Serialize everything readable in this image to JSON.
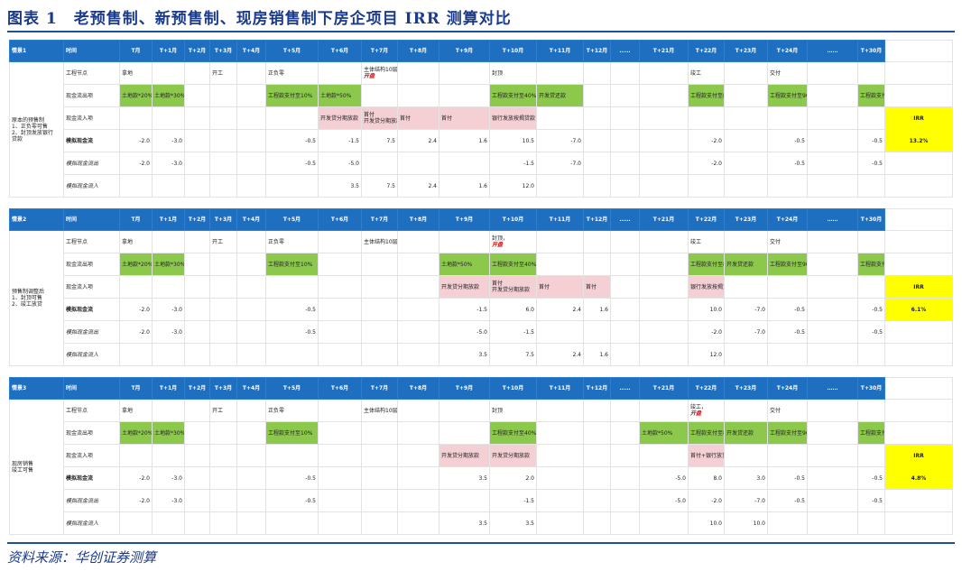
{
  "title": "图表 1　老预售制、新预售制、现房销售制下房企项目 IRR 测算对比",
  "source": "资料来源：华创证券测算",
  "columns": [
    "时间",
    "T月",
    "T+1月",
    "T+2月",
    "T+3月",
    "T+4月",
    "T+5月",
    "T+6月",
    "T+7月",
    "T+8月",
    "T+9月",
    "T+10月",
    "T+11月",
    "T+12月",
    "……",
    "T+21月",
    "T+22月",
    "T+23月",
    "T+24月",
    "……",
    "T+30月"
  ],
  "scenarios": [
    {
      "name": "情景1",
      "desc": [
        "原本的预售制",
        "1、正负零可售",
        "2、封顶发放银行",
        "贷款"
      ],
      "irr_label": "IRR",
      "irr": "13.2%",
      "rows": [
        {
          "label": "工程节点",
          "style": "plain",
          "cells": {
            "1": "拿地",
            "4": "开工",
            "6": "正负零",
            "8": [
              "主体结构10层",
              "开盘"
            ],
            "11": "封顶",
            "16": "竣工",
            "18": "交付"
          },
          "red": {
            "8": [
              1
            ]
          }
        },
        {
          "label": "现金流出项",
          "style": "plain",
          "cells": {
            "1": "土地款*20%",
            "2": "土地款*30%",
            "6": "工程款支付至10%",
            "7": "土地款*50%",
            "11": "工程款支付至40%",
            "12": "开发贷还款",
            "16": "工程款支付至80%",
            "18": "工程款支付至90%",
            "20": "工程款支付至100%"
          },
          "green": [
            1,
            2,
            6,
            7,
            11,
            12,
            16,
            18,
            20
          ]
        },
        {
          "label": "现金流入项",
          "style": "plain",
          "cells": {
            "7": "开发贷分期放款",
            "8": [
              "首付",
              "开发贷分期放款"
            ],
            "9": "首付",
            "10": "首付",
            "11": "银行发放按揭贷款"
          },
          "pink": [
            7,
            8,
            9,
            10,
            11
          ]
        },
        {
          "label": "模拟现金流",
          "style": "bold",
          "cells": {
            "1": "-2.0",
            "2": "-3.0",
            "6": "-0.5",
            "7": "-1.5",
            "8": "7.5",
            "9": "2.4",
            "10": "1.6",
            "11": "10.5",
            "12": "-7.0",
            "16": "-2.0",
            "18": "-0.5",
            "20": "-0.5"
          }
        },
        {
          "label": "模拟现金流出",
          "style": "sub",
          "cells": {
            "1": "-2.0",
            "2": "-3.0",
            "6": "-0.5",
            "7": "-5.0",
            "11": "-1.5",
            "12": "-7.0",
            "16": "-2.0",
            "18": "-0.5",
            "20": "-0.5"
          }
        },
        {
          "label": "模拟现金流入",
          "style": "sub",
          "cells": {
            "7": "3.5",
            "8": "7.5",
            "9": "2.4",
            "10": "1.6",
            "11": "12.0"
          }
        }
      ]
    },
    {
      "name": "情景2",
      "desc": [
        "预售制调整后",
        "1、封顶可售",
        "2、竣工放贷"
      ],
      "irr_label": "IRR",
      "irr": "6.1%",
      "rows": [
        {
          "label": "工程节点",
          "style": "plain",
          "cells": {
            "1": "拿地",
            "4": "开工",
            "6": "正负零",
            "8": "主体结构10层",
            "11": [
              "封顶，",
              "开盘"
            ],
            "16": "竣工",
            "18": "交付"
          },
          "red": {
            "11": [
              1
            ]
          }
        },
        {
          "label": "现金流出项",
          "style": "plain",
          "cells": {
            "1": "土地款*20%",
            "2": "土地款*30%",
            "6": "工程款支付至10%",
            "10": "土地款*50%",
            "11": "工程款支付至40%",
            "16": "工程款支付至80%",
            "17": "开发贷还款",
            "18": "工程款支付至90%",
            "20": "工程款支付至100%"
          },
          "green": [
            1,
            2,
            6,
            10,
            11,
            16,
            17,
            18,
            20
          ]
        },
        {
          "label": "现金流入项",
          "style": "plain",
          "cells": {
            "10": "开发贷分期放款",
            "11": [
              "首付",
              "开发贷分期放款"
            ],
            "12": "首付",
            "13": "首付",
            "16": "银行发放按揭贷款"
          },
          "pink": [
            10,
            11,
            12,
            13,
            16
          ]
        },
        {
          "label": "模拟现金流",
          "style": "bold",
          "cells": {
            "1": "-2.0",
            "2": "-3.0",
            "6": "-0.5",
            "10": "-1.5",
            "11": "6.0",
            "12": "2.4",
            "13": "1.6",
            "16": "10.0",
            "17": "-7.0",
            "18": "-0.5",
            "20": "-0.5"
          }
        },
        {
          "label": "模拟现金流出",
          "style": "sub",
          "cells": {
            "1": "-2.0",
            "2": "-3.0",
            "6": "-0.5",
            "10": "-5.0",
            "11": "-1.5",
            "16": "-2.0",
            "17": "-7.0",
            "18": "-0.5",
            "20": "-0.5"
          }
        },
        {
          "label": "模拟现金流入",
          "style": "sub",
          "cells": {
            "10": "3.5",
            "11": "7.5",
            "12": "2.4",
            "13": "1.6",
            "16": "12.0"
          }
        }
      ]
    },
    {
      "name": "情景3",
      "desc": [
        "现房销售",
        "竣工可售"
      ],
      "irr_label": "IRR",
      "irr": "4.8%",
      "rows": [
        {
          "label": "工程节点",
          "style": "plain",
          "cells": {
            "1": "拿地",
            "4": "开工",
            "6": "正负零",
            "8": "主体结构10层",
            "11": "封顶",
            "16": [
              "竣工，",
              "开盘"
            ],
            "18": "交付"
          },
          "red": {
            "16": [
              1
            ]
          }
        },
        {
          "label": "现金流出项",
          "style": "plain",
          "cells": {
            "1": "土地款*20%",
            "2": "土地款*30%",
            "6": "工程款支付至10%",
            "11": "工程款支付至40%",
            "15": "土地款*50%",
            "16": "工程款支付至80%",
            "17": "开发贷还款",
            "18": "工程款支付至90%",
            "20": "工程款支付至100%"
          },
          "green": [
            1,
            2,
            6,
            11,
            15,
            16,
            17,
            18,
            20
          ]
        },
        {
          "label": "现金流入项",
          "style": "plain",
          "cells": {
            "10": "开发贷分期放款",
            "11": "开发贷分期放款",
            "16": "首付+银行放贷"
          },
          "pink": [
            10,
            11,
            16
          ]
        },
        {
          "label": "模拟现金流",
          "style": "bold",
          "cells": {
            "1": "-2.0",
            "2": "-3.0",
            "6": "-0.5",
            "10": "3.5",
            "11": "2.0",
            "15": "-5.0",
            "16": "8.0",
            "17": "3.0",
            "18": "-0.5",
            "20": "-0.5"
          }
        },
        {
          "label": "模拟现金流出",
          "style": "sub",
          "cells": {
            "1": "-2.0",
            "2": "-3.0",
            "6": "-0.5",
            "11": "-1.5",
            "15": "-5.0",
            "16": "-2.0",
            "17": "-7.0",
            "18": "-0.5",
            "20": "-0.5"
          }
        },
        {
          "label": "模拟现金流入",
          "style": "sub",
          "cells": {
            "10": "3.5",
            "11": "3.5",
            "16": "10.0",
            "17": "10.0"
          }
        }
      ]
    }
  ]
}
